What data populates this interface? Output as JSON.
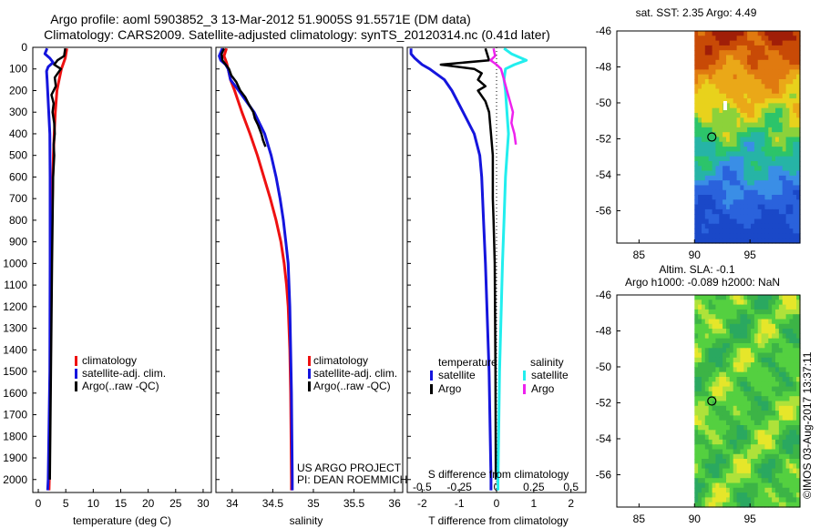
{
  "title": {
    "line1": "Argo profile: aoml 5903852_3 13-Mar-2012 51.9005S 91.5571E (DM data)",
    "line2": "Climatology: CARS2009. Satellite-adjusted climatology: synTS_20120314.nc (0.41d later)"
  },
  "colors": {
    "climatology": "#ee1111",
    "satellite": "#1515dd",
    "argo": "#000000",
    "cyan": "#22eeee",
    "magenta": "#ee22ee"
  },
  "chart_data": [
    {
      "type": "line",
      "title": "Temperature profile",
      "xlabel": "temperature (deg C)",
      "ylabel": "",
      "xlim": [
        -1,
        31.5
      ],
      "ylim": [
        0,
        2060
      ],
      "xticks": [
        "0",
        "5",
        "10",
        "15",
        "20",
        "25",
        "30"
      ],
      "yticks": [
        "0",
        "100",
        "200",
        "300",
        "400",
        "500",
        "600",
        "700",
        "800",
        "900",
        "1000",
        "1100",
        "1200",
        "1300",
        "1400",
        "1500",
        "1600",
        "1700",
        "1800",
        "1900",
        "2000"
      ],
      "legend": [
        "climatology",
        "satellite-adj. clim.",
        "Argo(..raw -QC)"
      ],
      "series": [
        {
          "name": "climatology",
          "depth": [
            5,
            50,
            100,
            150,
            200,
            300,
            400,
            500,
            600,
            800,
            1000,
            1500,
            2000,
            2050
          ],
          "values": [
            5.2,
            4.9,
            4.2,
            3.8,
            3.4,
            3.1,
            2.9,
            2.75,
            2.65,
            2.5,
            2.4,
            2.2,
            2.0,
            1.95
          ]
        },
        {
          "name": "satellite-adj. clim.",
          "depth": [
            5,
            30,
            50,
            70,
            90,
            110,
            150,
            200,
            300,
            400,
            600,
            1000,
            1500,
            2000,
            2050
          ],
          "values": [
            1.6,
            1.2,
            2.1,
            2.7,
            1.8,
            1.5,
            1.6,
            1.7,
            1.9,
            2.1,
            2.15,
            2.15,
            2.1,
            1.8,
            1.7
          ]
        },
        {
          "name": "Argo(..raw -QC)",
          "depth": [
            5,
            40,
            60,
            80,
            100,
            140,
            180,
            220,
            260,
            300,
            350,
            400,
            450,
            500,
            600,
            800,
            1000,
            1500,
            2000
          ],
          "values": [
            4.9,
            4.7,
            3.5,
            2.9,
            4.1,
            3.0,
            3.2,
            2.4,
            2.8,
            2.6,
            2.9,
            3.0,
            2.8,
            2.9,
            2.7,
            2.6,
            2.5,
            2.3,
            2.1
          ]
        }
      ]
    },
    {
      "type": "line",
      "title": "Salinity profile",
      "xlabel": "salinity",
      "xlim": [
        33.8,
        36.1
      ],
      "ylim": [
        0,
        2060
      ],
      "xticks": [
        "34",
        "34.5",
        "35",
        "35.5",
        "36"
      ],
      "legend": [
        "climatology",
        "satellite-adj. clim.",
        "Argo(..raw -QC)"
      ],
      "annotations": [
        "US ARGO PROJECT",
        "PI: DEAN ROEMMICH"
      ],
      "series": [
        {
          "name": "climatology",
          "depth": [
            5,
            40,
            70,
            100,
            150,
            200,
            300,
            400,
            500,
            600,
            700,
            800,
            900,
            1000,
            1100,
            1200,
            1400,
            1600,
            2000,
            2050
          ],
          "values": [
            33.93,
            33.9,
            33.93,
            33.95,
            33.98,
            34.03,
            34.12,
            34.22,
            34.31,
            34.39,
            34.47,
            34.54,
            34.6,
            34.64,
            34.67,
            34.69,
            34.71,
            34.72,
            34.73,
            34.73
          ]
        },
        {
          "name": "satellite-adj. clim.",
          "depth": [
            5,
            40,
            60,
            80,
            100,
            150,
            200,
            300,
            400,
            500,
            600,
            700,
            800,
            900,
            1000,
            1100,
            1200,
            1400,
            1600,
            2000,
            2050
          ],
          "values": [
            33.88,
            33.84,
            33.86,
            33.92,
            33.95,
            33.98,
            34.08,
            34.27,
            34.4,
            34.48,
            34.54,
            34.59,
            34.63,
            34.66,
            34.69,
            34.7,
            34.71,
            34.72,
            34.73,
            34.74,
            34.74
          ]
        },
        {
          "name": "Argo(..raw -QC)",
          "depth": [
            5,
            30,
            60,
            80,
            100,
            130,
            160,
            200,
            230,
            260,
            300,
            330,
            360,
            400,
            430,
            460
          ],
          "values": [
            33.9,
            33.87,
            33.88,
            33.92,
            33.96,
            33.99,
            34.05,
            34.1,
            34.16,
            34.2,
            34.26,
            34.28,
            34.32,
            34.36,
            34.38,
            34.41
          ]
        }
      ]
    },
    {
      "type": "line",
      "title": "Difference from climatology",
      "xlabel": "T difference from climatology",
      "xlabel_top": "S difference from climatology",
      "xlim": [
        -2.4,
        2.4
      ],
      "ylim": [
        0,
        2060
      ],
      "xticks": [
        "-2",
        "-1",
        "0",
        "1",
        "2"
      ],
      "xticks_top": [
        "-0.5",
        "-0.25",
        "0",
        "0.25",
        "0.5"
      ],
      "legend_title_left": "temperature",
      "legend_title_right": "salinity",
      "legend": [
        "satellite",
        "Argo",
        "satellite",
        "Argo"
      ],
      "series": [
        {
          "name": "T satellite",
          "depth": [
            5,
            30,
            50,
            80,
            100,
            150,
            200,
            300,
            400,
            500,
            600,
            800,
            1000,
            1500,
            2000,
            2050
          ],
          "values": [
            -2.3,
            -2.3,
            -2.2,
            -2.0,
            -1.8,
            -1.4,
            -1.2,
            -0.9,
            -0.6,
            -0.45,
            -0.4,
            -0.35,
            -0.3,
            -0.2,
            -0.15,
            -0.15
          ]
        },
        {
          "name": "T Argo",
          "depth": [
            5,
            60,
            80,
            100,
            120,
            150,
            180,
            200,
            250,
            300,
            400,
            500,
            600,
            700,
            800,
            1000,
            1500,
            2000
          ],
          "values": [
            -0.3,
            -0.2,
            -1.5,
            -0.6,
            -0.4,
            -0.5,
            -0.3,
            -0.5,
            -0.3,
            -0.2,
            -0.15,
            -0.1,
            -0.1,
            -0.1,
            -0.08,
            -0.05,
            -0.03,
            -0.02
          ]
        },
        {
          "name": "S satellite",
          "depth": [
            5,
            30,
            60,
            80,
            100,
            150,
            200,
            300,
            400,
            500,
            600,
            800,
            1000,
            1500,
            2000,
            2050
          ],
          "values": [
            0.05,
            0.1,
            0.2,
            0.12,
            0.06,
            0.05,
            0.06,
            0.07,
            0.08,
            0.07,
            0.06,
            0.05,
            0.04,
            0.02,
            0.01,
            0.01
          ]
        },
        {
          "name": "S Argo",
          "depth": [
            5,
            40,
            60,
            80,
            100,
            150,
            200,
            250,
            300,
            350,
            400,
            450
          ],
          "values": [
            -0.02,
            -0.01,
            -0.04,
            0.0,
            0.03,
            0.05,
            0.07,
            0.09,
            0.11,
            0.1,
            0.12,
            0.13
          ]
        }
      ]
    },
    {
      "type": "heatmap",
      "title": "sat. SST: 2.35 Argo: 4.49",
      "xticks": [
        "85",
        "90",
        "95"
      ],
      "yticks": [
        "-46",
        "-48",
        "-50",
        "-52",
        "-54",
        "-56"
      ],
      "xlim": [
        83,
        99.5
      ],
      "ylim": [
        -57.8,
        -46
      ],
      "marker": {
        "lon": 91.56,
        "lat": -51.9
      }
    },
    {
      "type": "heatmap",
      "title_line1": "Altim. SLA: -0.1",
      "title_line2": "Argo h1000: -0.089 h2000: NaN",
      "xticks": [
        "85",
        "90",
        "95"
      ],
      "yticks": [
        "-46",
        "-48",
        "-50",
        "-52",
        "-54",
        "-56"
      ],
      "xlim": [
        83,
        99.5
      ],
      "ylim": [
        -57.8,
        -46
      ],
      "marker": {
        "lon": 91.56,
        "lat": -51.9
      }
    }
  ],
  "footer": {
    "stamp": "©IMOS 03-Aug-2017 13:37:11"
  }
}
